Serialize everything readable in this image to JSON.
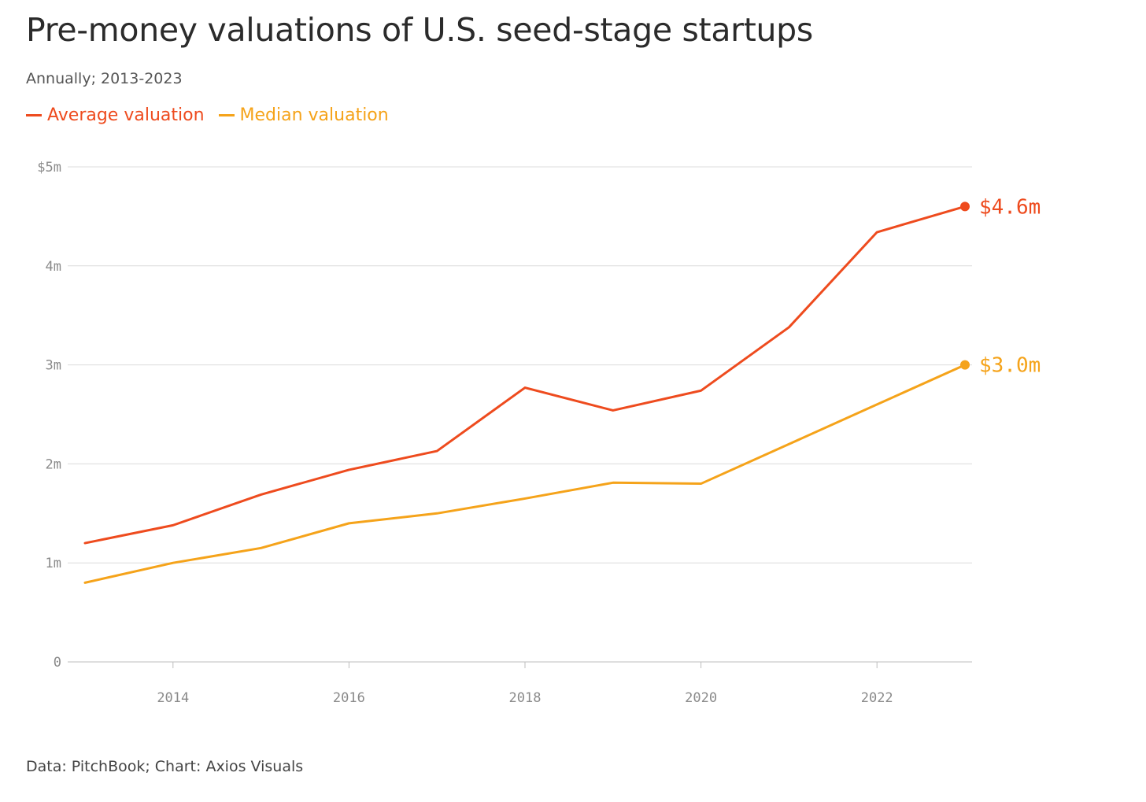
{
  "header": {
    "title": "Pre-money valuations of U.S. seed-stage startups",
    "subtitle": "Annually; 2013-2023"
  },
  "legend": [
    {
      "label": "Average valuation",
      "color": "#ee4b1e"
    },
    {
      "label": "Median valuation",
      "color": "#f5a31a"
    }
  ],
  "footer": {
    "source": "Data: PitchBook; Chart: Axios Visuals"
  },
  "chart_data": {
    "type": "line",
    "title": "Pre-money valuations of U.S. seed-stage startups",
    "subtitle": "Annually; 2013-2023",
    "x": [
      2013,
      2014,
      2015,
      2016,
      2017,
      2018,
      2019,
      2020,
      2021,
      2022,
      2023
    ],
    "x_ticks": [
      2014,
      2016,
      2018,
      2020,
      2022
    ],
    "x_tick_labels": [
      "2014",
      "2016",
      "2018",
      "2020",
      "2022"
    ],
    "xlim": [
      2013,
      2023
    ],
    "ylim": [
      0,
      5
    ],
    "y_ticks": [
      0,
      1,
      2,
      3,
      4,
      5
    ],
    "y_tick_labels": [
      "0",
      "1m",
      "2m",
      "3m",
      "4m",
      "$5m"
    ],
    "grid": true,
    "legend_position": "top-left",
    "series": [
      {
        "name": "Average valuation",
        "color": "#ee4b1e",
        "values": [
          1.2,
          1.38,
          1.69,
          1.94,
          2.13,
          2.77,
          2.54,
          2.74,
          3.38,
          4.34,
          4.6
        ],
        "end_label": "$4.6m"
      },
      {
        "name": "Median valuation",
        "color": "#f5a31a",
        "values": [
          0.8,
          1.0,
          1.15,
          1.4,
          1.5,
          1.65,
          1.81,
          1.8,
          2.2,
          2.6,
          3.0
        ],
        "end_label": "$3.0m"
      }
    ]
  }
}
